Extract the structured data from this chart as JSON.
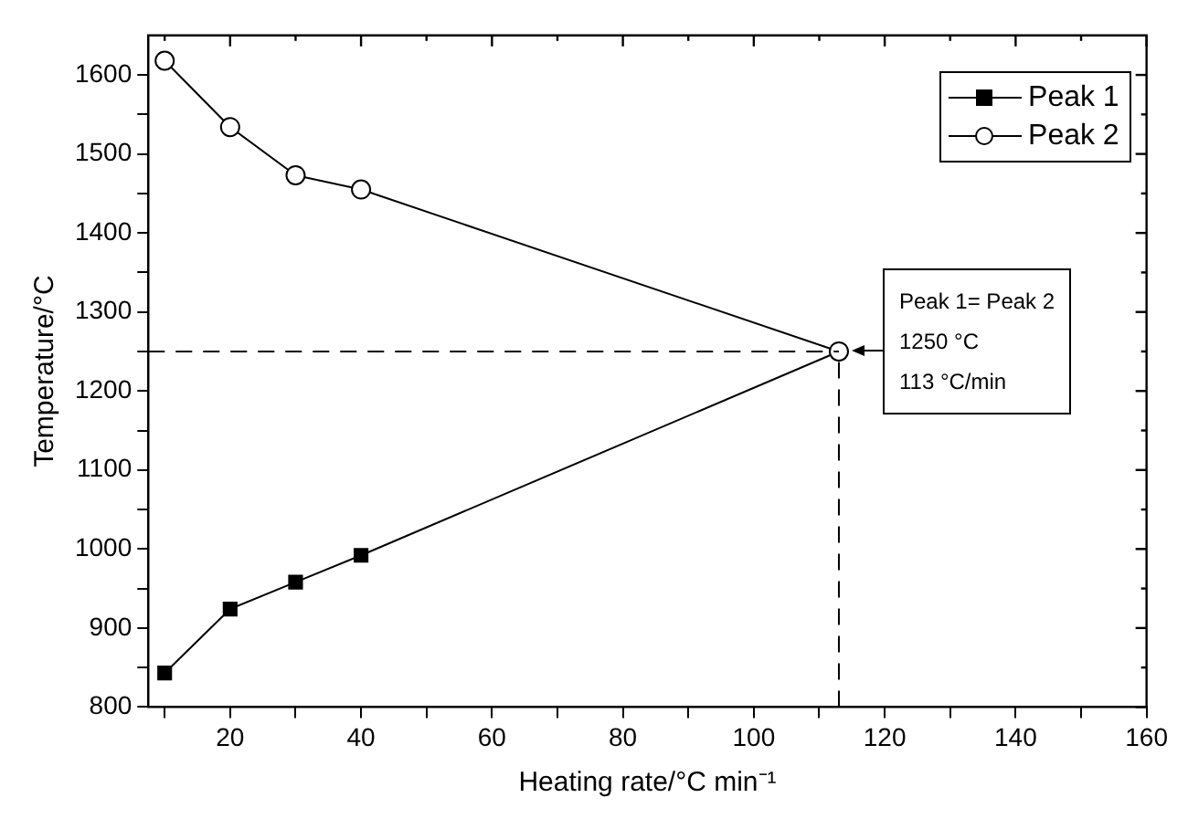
{
  "chart_data": {
    "type": "line",
    "xlabel": "Heating rate/°C min⁻¹",
    "ylabel": "Temperature/°C",
    "series": [
      {
        "name": "Peak 1",
        "color": "#000000",
        "marker": "square",
        "x": [
          10,
          20,
          30,
          40,
          113
        ],
        "values": [
          843,
          924,
          958,
          992,
          1250
        ]
      },
      {
        "name": "Peak 2",
        "color": "#000000",
        "marker": "circle",
        "x": [
          10,
          20,
          30,
          40,
          113
        ],
        "values": [
          1618,
          1534,
          1473,
          1455,
          1250
        ]
      }
    ],
    "xlim": [
      7.5,
      160
    ],
    "xticks": [
      {
        "value": 10,
        "label": null
      },
      20,
      {
        "value": 30,
        "label": null
      },
      40,
      {
        "value": 50,
        "label": null
      },
      60,
      {
        "value": 70,
        "label": null
      },
      80,
      {
        "value": 90,
        "label": null
      },
      100,
      {
        "value": 110,
        "label": null
      },
      120,
      {
        "value": 130,
        "label": null
      },
      140,
      {
        "value": 150,
        "label": null
      },
      160
    ],
    "ylim": [
      800,
      1650
    ],
    "yticks": [
      800,
      {
        "value": 850,
        "label": null
      },
      900,
      {
        "value": 950,
        "label": null
      },
      1000,
      {
        "value": 1050,
        "label": null
      },
      1100,
      {
        "value": 1150,
        "label": null
      },
      1200,
      {
        "value": 1250,
        "label": null
      },
      1300,
      {
        "value": 1350,
        "label": null
      },
      1400,
      {
        "value": 1450,
        "label": null
      },
      1500,
      {
        "value": 1550,
        "label": null
      },
      1600
    ],
    "ref_lines": [
      {
        "axis": "y",
        "value": 1250,
        "line_style": "dashed"
      },
      {
        "axis": "x",
        "value": 113,
        "line_style": "dashed"
      }
    ],
    "annotations": [
      {
        "text": "Peak 1= Peak 2\n1250 °C\n113 °C/min",
        "x": 113,
        "y": 1250
      }
    ],
    "legend": "top right",
    "grid": false,
    "line_style": "solid"
  }
}
